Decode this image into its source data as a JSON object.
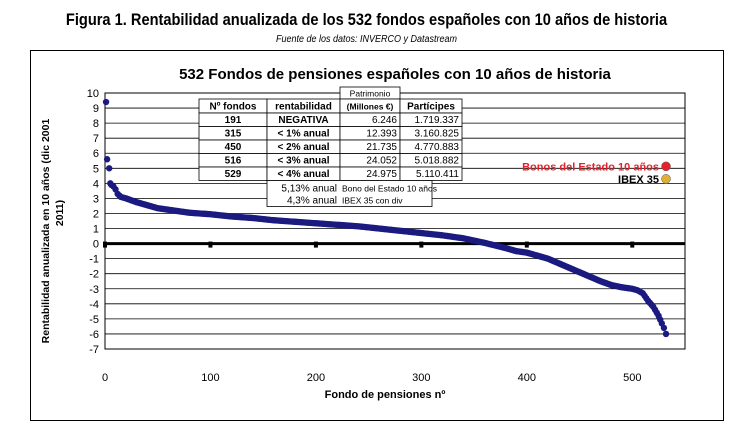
{
  "figure": {
    "title": "Figura 1. Rentabilidad anualizada de los 532 fondos españoles con 10 años de historia",
    "source": "Fuente de los datos: INVERCO y Datastream"
  },
  "chart_data": {
    "type": "scatter",
    "title": "532 Fondos de pensiones españoles con 10 años de historia",
    "xlabel": "Fondo de pensiones nº",
    "ylabel": "Rentabilidad anualizada en 10 años (dic 2001 2011)",
    "xlim": [
      0,
      550
    ],
    "ylim": [
      -7,
      10
    ],
    "x_ticks": [
      0,
      100,
      200,
      300,
      400,
      500
    ],
    "y_ticks": [
      10,
      9,
      8,
      7,
      6,
      5,
      4,
      3,
      2,
      1,
      0,
      -1,
      -2,
      -3,
      -4,
      -5,
      -6,
      -7
    ],
    "grid": "horizontal",
    "series_color": "#1a1a80",
    "series": [
      {
        "points": [
          [
            1,
            9.4
          ],
          [
            2,
            5.6
          ],
          [
            4,
            5.0
          ],
          [
            5,
            4.0
          ],
          [
            6,
            3.9
          ],
          [
            8,
            3.8
          ],
          [
            10,
            3.6
          ],
          [
            12,
            3.3
          ],
          [
            15,
            3.1
          ],
          [
            20,
            3.0
          ],
          [
            30,
            2.75
          ],
          [
            40,
            2.55
          ],
          [
            50,
            2.35
          ],
          [
            60,
            2.25
          ],
          [
            70,
            2.15
          ],
          [
            80,
            2.05
          ],
          [
            100,
            1.95
          ],
          [
            120,
            1.8
          ],
          [
            140,
            1.7
          ],
          [
            160,
            1.55
          ],
          [
            180,
            1.45
          ],
          [
            200,
            1.35
          ],
          [
            220,
            1.25
          ],
          [
            240,
            1.15
          ],
          [
            260,
            1.0
          ],
          [
            280,
            0.85
          ],
          [
            300,
            0.7
          ],
          [
            320,
            0.55
          ],
          [
            340,
            0.35
          ],
          [
            360,
            0.05
          ],
          [
            380,
            -0.3
          ],
          [
            390,
            -0.5
          ],
          [
            400,
            -0.6
          ],
          [
            410,
            -0.8
          ],
          [
            420,
            -1.0
          ],
          [
            430,
            -1.3
          ],
          [
            440,
            -1.6
          ],
          [
            450,
            -1.9
          ],
          [
            460,
            -2.2
          ],
          [
            470,
            -2.5
          ],
          [
            480,
            -2.75
          ],
          [
            490,
            -2.9
          ],
          [
            500,
            -3.0
          ],
          [
            505,
            -3.1
          ],
          [
            510,
            -3.3
          ],
          [
            515,
            -3.8
          ],
          [
            520,
            -4.2
          ],
          [
            525,
            -4.8
          ],
          [
            528,
            -5.3
          ],
          [
            530,
            -5.6
          ],
          [
            532,
            -6.0
          ]
        ]
      }
    ],
    "highlights": [
      {
        "name": "Bonos del Estado 10 años",
        "x": 532,
        "y": 5.13,
        "color": "#e8202a",
        "label_color": "#e8202a"
      },
      {
        "name": "IBEX 35",
        "x": 532,
        "y": 4.3,
        "color": "#e0b030",
        "label_color": "#000000"
      }
    ],
    "table": {
      "headers": [
        "Nº fondos",
        "rentabilidad",
        "Patrimonio (Millones €)",
        "Partícipes"
      ],
      "header_patrimonio_top": "Patrimonio",
      "header_patrimonio_bottom": "(Millones €)",
      "rows": [
        [
          "191",
          "NEGATIVA",
          "6.246",
          "1.719.337"
        ],
        [
          "315",
          "< 1% anual",
          "12.393",
          "3.160.825"
        ],
        [
          "450",
          "< 2% anual",
          "21.735",
          "4.770.883"
        ],
        [
          "516",
          "< 3% anual",
          "24.052",
          "5.018.882"
        ],
        [
          "529",
          "< 4% anual",
          "24.975",
          "5.110.411"
        ]
      ],
      "extra_rows": [
        [
          "5,13% anual",
          "Bono del Estado 10 años"
        ],
        [
          "4,3% anual",
          "IBEX 35 con div"
        ]
      ]
    }
  }
}
